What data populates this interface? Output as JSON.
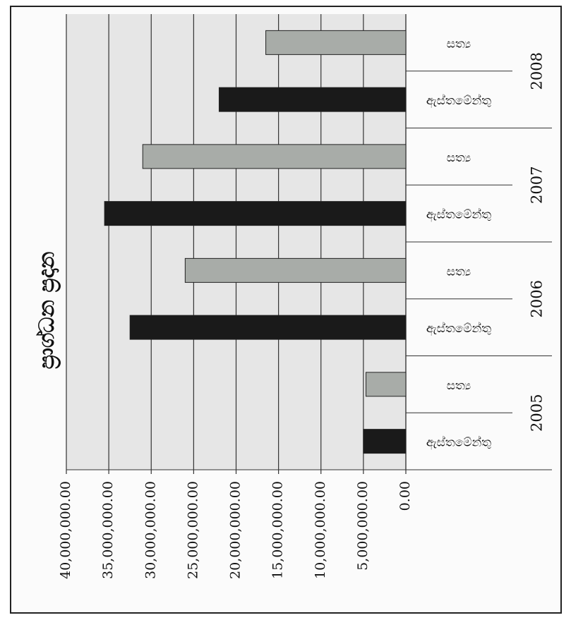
{
  "chart_data": {
    "type": "bar",
    "orientation": "horizontal",
    "title": "ප්‍රාග්ධන ප්‍රදාන",
    "years": [
      "2008",
      "2007",
      "2006",
      "2005"
    ],
    "bar_labels": {
      "actual": "සත්‍ය",
      "estimate": "ඇස්තමේන්තු"
    },
    "categories": [
      {
        "year": "2008",
        "label": "සත්‍ය",
        "value": 16500000,
        "kind": "actual"
      },
      {
        "year": "2008",
        "label": "ඇස්තමේන්තු",
        "value": 22000000,
        "kind": "estimate"
      },
      {
        "year": "2007",
        "label": "සත්‍ය",
        "value": 31000000,
        "kind": "actual"
      },
      {
        "year": "2007",
        "label": "ඇස්තමේන්තු",
        "value": 35500000,
        "kind": "estimate"
      },
      {
        "year": "2006",
        "label": "සත්‍ය",
        "value": 26000000,
        "kind": "actual"
      },
      {
        "year": "2006",
        "label": "ඇස්තමේන්තු",
        "value": 32500000,
        "kind": "estimate"
      },
      {
        "year": "2005",
        "label": "සත්‍ය",
        "value": 4700000,
        "kind": "actual"
      },
      {
        "year": "2005",
        "label": "ඇස්තමේන්තු",
        "value": 5000000,
        "kind": "estimate"
      }
    ],
    "value_ticks": [
      "40,000,000.00",
      "35,000,000.00",
      "30,000,000.00",
      "25,000,000.00",
      "20,000,000.00",
      "15,000,000.00",
      "10,000,000.00",
      "5,000,000.00",
      "0.00"
    ],
    "tick_values": [
      40000000,
      35000000,
      30000000,
      25000000,
      20000000,
      15000000,
      10000000,
      5000000,
      0
    ],
    "xlim": [
      0,
      40000000
    ],
    "grid": true,
    "colors": {
      "actual": "#a8aca8",
      "estimate": "#1a1a1a",
      "plot_bg": "#e6e6e6",
      "grid": "#333333"
    }
  }
}
